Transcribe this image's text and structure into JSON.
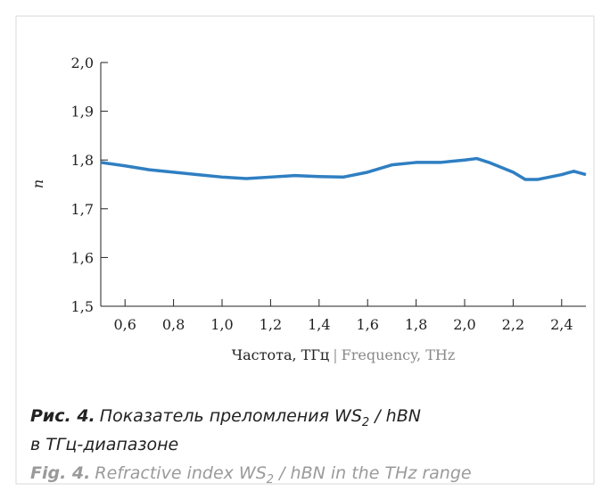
{
  "chart_data": {
    "type": "line",
    "ylabel": "n",
    "xlabel_ru": "Частота, ТГц",
    "xlabel_sep": "|",
    "xlabel_en": "Frequency, THz",
    "x": [
      0.5,
      0.6,
      0.7,
      0.8,
      0.9,
      1.0,
      1.1,
      1.2,
      1.3,
      1.4,
      1.5,
      1.6,
      1.7,
      1.8,
      1.9,
      2.0,
      2.05,
      2.1,
      2.2,
      2.25,
      2.3,
      2.4,
      2.45,
      2.5
    ],
    "series": [
      {
        "color": "#2f7fc2",
        "values": [
          1.795,
          1.788,
          1.78,
          1.775,
          1.77,
          1.765,
          1.762,
          1.765,
          1.768,
          1.766,
          1.765,
          1.775,
          1.79,
          1.795,
          1.795,
          1.8,
          1.803,
          1.795,
          1.775,
          1.76,
          1.76,
          1.77,
          1.777,
          1.77
        ]
      }
    ],
    "xlim": [
      0.5,
      2.5
    ],
    "xticks": [
      {
        "value": 0.6,
        "label": "0,6"
      },
      {
        "value": 0.8,
        "label": "0,8"
      },
      {
        "value": 1.0,
        "label": "1,0"
      },
      {
        "value": 1.2,
        "label": "1,2"
      },
      {
        "value": 1.4,
        "label": "1,4"
      },
      {
        "value": 1.6,
        "label": "1,6"
      },
      {
        "value": 1.8,
        "label": "1,8"
      },
      {
        "value": 2.0,
        "label": "2,0"
      },
      {
        "value": 2.2,
        "label": "2,2"
      },
      {
        "value": 2.4,
        "label": "2,4"
      }
    ],
    "ylim": [
      1.5,
      2.0
    ],
    "yticks": [
      {
        "value": 1.5,
        "label": "1,5"
      },
      {
        "value": 1.6,
        "label": "1,6"
      },
      {
        "value": 1.7,
        "label": "1,7"
      },
      {
        "value": 1.8,
        "label": "1,8"
      },
      {
        "value": 1.9,
        "label": "1,9"
      },
      {
        "value": 2.0,
        "label": "2,0"
      }
    ]
  },
  "caption": {
    "ru_label": "Рис. 4.",
    "ru_text_1": "Показатель преломления WS",
    "ru_sub": "2",
    "ru_text_2": " / hBN",
    "ru_text_3": "в ТГц-диапазоне",
    "en_label": "Fig. 4.",
    "en_text_1": "Refractive index WS",
    "en_sub": "2",
    "en_text_2": " / hBN in the THz range"
  }
}
